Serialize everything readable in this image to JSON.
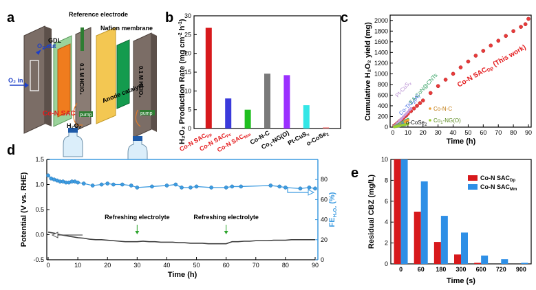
{
  "panel_labels": [
    "a",
    "b",
    "c",
    "d",
    "e"
  ],
  "schematic": {
    "o2_out": "O₂ out",
    "o2_in": "O₂ in",
    "gdl": "GDL",
    "reference_electrode": "Reference electrode",
    "nafion_membrane": "Nafion membrane",
    "electrolyte_left": "0.1 M HClO₄",
    "electrolyte_right": "0.1 M HClO₄",
    "co_n_sac": "Co-N SAC",
    "anode_catalyst": "Anode catalyst",
    "pump_left": "pump",
    "pump_right": "pump",
    "h2o2": "H₂O₂"
  },
  "chart_data": [
    {
      "id": "b",
      "type": "bar",
      "ylabel_main": "H₂O₂ Production Rate (mg cm",
      "ylabel_sup1": "-2",
      "ylabel_mid": " h",
      "ylabel_sup2": "-1",
      "ylabel_end": ")",
      "ylim": [
        0,
        30
      ],
      "yticks": [
        "0",
        "5",
        "10",
        "15",
        "20",
        "25",
        "30"
      ],
      "categories": [
        {
          "main": "Co-N SAC",
          "sub": "Dp",
          "color": "#e41a1c"
        },
        {
          "main": "Co-N SAC",
          "sub": "Pc",
          "color": "#e41a1c"
        },
        {
          "main": "Co-N SAC",
          "sub": "Mm",
          "color": "#e41a1c"
        },
        {
          "main": "Co-N-C",
          "sub": "",
          "color": "#000000"
        },
        {
          "main": "Co",
          "sub": "1",
          "rest": "-NG(O)",
          "color": "#000000"
        },
        {
          "main": "Pt-CuS",
          "sub": "x",
          "color": "#000000"
        },
        {
          "main": "o-CoSe",
          "sub": "2",
          "color": "#000000"
        }
      ],
      "values": [
        26.8,
        8.0,
        5.0,
        14.6,
        14.2,
        6.2,
        0.3
      ],
      "colors": [
        "#d7191c",
        "#3a3adb",
        "#1fbf1f",
        "#7a7a7a",
        "#9b30ff",
        "#33e6e6",
        "#f08080"
      ]
    },
    {
      "id": "c",
      "type": "scatter",
      "xlabel": "Time (h)",
      "ylabel": "Cumulative H₂O₂ yield (mg)",
      "xlim": [
        0,
        90
      ],
      "ylim": [
        0,
        2100
      ],
      "xticks": [
        "0",
        "10",
        "20",
        "30",
        "40",
        "50",
        "60",
        "70",
        "80",
        "90"
      ],
      "yticks": [
        "0",
        "200",
        "400",
        "600",
        "800",
        "1000",
        "1200",
        "1400",
        "1600",
        "1800",
        "2000"
      ],
      "series": [
        {
          "name": "Co-N SAC",
          "sub": "Dp",
          "rest": " (This work)",
          "color": "#e83a3a",
          "x": [
            1,
            2,
            3,
            4,
            5,
            6,
            7,
            8,
            9,
            10,
            12,
            14,
            16,
            18,
            20,
            25,
            30,
            35,
            40,
            45,
            50,
            55,
            60,
            65,
            70,
            75,
            80,
            85,
            88,
            90
          ],
          "y": [
            25,
            50,
            75,
            100,
            125,
            150,
            175,
            200,
            225,
            255,
            300,
            350,
            400,
            450,
            500,
            640,
            770,
            890,
            1000,
            1120,
            1230,
            1340,
            1430,
            1530,
            1620,
            1710,
            1800,
            1880,
            1930,
            2030
          ]
        },
        {
          "name": "Pt-CuS",
          "sub": "x",
          "rest": "",
          "color": "#c9a0dc",
          "x": [
            1,
            2,
            3,
            4,
            5,
            6,
            7,
            8,
            9,
            10,
            11,
            12
          ],
          "y": [
            20,
            45,
            75,
            105,
            135,
            165,
            195,
            225,
            255,
            285,
            320,
            350
          ]
        },
        {
          "name": "EA-CoN@CNTs",
          "sub": "",
          "rest": "",
          "color": "#3cb371",
          "x": [
            1,
            2,
            3,
            4,
            5,
            6,
            7,
            8,
            9,
            10
          ],
          "y": [
            10,
            25,
            40,
            55,
            70,
            85,
            100,
            115,
            130,
            145
          ]
        },
        {
          "name": "o-CoSe",
          "sub": "2",
          "rest": "",
          "color": "#5f9ea0",
          "x": [
            1,
            2,
            3,
            4,
            5,
            6,
            7,
            8
          ],
          "y": [
            5,
            10,
            15,
            20,
            25,
            30,
            35,
            40
          ]
        },
        {
          "name": "Co-N-C",
          "sub": "",
          "rest": "",
          "color": "#f0a030",
          "x": [
            1,
            2,
            3,
            4,
            5,
            6,
            7,
            8,
            9,
            10
          ],
          "y": [
            10,
            20,
            30,
            40,
            55,
            70,
            85,
            100,
            115,
            130
          ]
        },
        {
          "name": "Co-TiO",
          "sub": "2",
          "rest": "(A)",
          "color": "#4169e1",
          "x": [
            1,
            2,
            3,
            4,
            5,
            6,
            7
          ],
          "y": [
            8,
            16,
            24,
            32,
            40,
            48,
            56
          ]
        },
        {
          "name": "Co",
          "sub": "1",
          "rest": "-NG(O)",
          "color": "#9acd32",
          "x": [
            1,
            2,
            3,
            4,
            5,
            6,
            7,
            8,
            9,
            10
          ],
          "y": [
            6,
            12,
            18,
            24,
            30,
            36,
            42,
            48,
            54,
            60
          ]
        }
      ],
      "labels": {
        "this_work": "Co-N SAC",
        "this_work_sub": "Dp",
        "this_work_rest": " (This work)",
        "ptcus": "Pt-CuS",
        "ptcus_sub": "x",
        "ea": "EA-CoN@CNTs",
        "coti": "Co-TiO",
        "coti_sub": "2",
        "coti_rest": "(A)",
        "cose": "o-CoSe",
        "cose_sub": "2",
        "conc": "Co-N-C",
        "cong": "Co",
        "cong_sub": "1",
        "cong_rest": "-NG(O)"
      }
    },
    {
      "id": "d",
      "type": "line",
      "xlabel": "Time (h)",
      "ylabel_left": "Potential (V vs. RHE)",
      "ylabel_right_main": "FE",
      "ylabel_right_sub": "H₂O₂",
      "ylabel_right_end": " (%)",
      "xlim": [
        0,
        90
      ],
      "ylim_left": [
        -0.5,
        1.5
      ],
      "ylim_right": [
        0,
        100
      ],
      "xticks": [
        "0",
        "10",
        "20",
        "30",
        "40",
        "50",
        "60",
        "70",
        "80",
        "90"
      ],
      "yticks_left": [
        "-0.5",
        "0.0",
        "0.5",
        "1.0",
        "1.5"
      ],
      "yticks_right": [
        "0",
        "20",
        "40",
        "60",
        "80"
      ],
      "annotations": [
        "Refreshing electrolyte",
        "Refreshing electrolyte"
      ],
      "annotation_x": [
        30,
        60
      ],
      "potential": {
        "x": [
          0,
          2,
          4,
          6,
          8,
          10,
          12,
          14,
          16,
          18,
          20,
          22,
          24,
          26,
          28,
          30,
          32,
          34,
          36,
          38,
          40,
          42,
          44,
          46,
          48,
          50,
          52,
          54,
          56,
          58,
          60,
          62,
          64,
          66,
          68,
          70,
          72,
          74,
          76,
          78,
          80,
          82,
          84,
          86,
          88,
          90
        ],
        "y": [
          0.05,
          0.03,
          0.0,
          -0.02,
          -0.04,
          -0.06,
          -0.07,
          -0.09,
          -0.1,
          -0.1,
          -0.11,
          -0.12,
          -0.13,
          -0.14,
          -0.14,
          -0.14,
          -0.13,
          -0.14,
          -0.14,
          -0.15,
          -0.15,
          -0.15,
          -0.16,
          -0.16,
          -0.17,
          -0.17,
          -0.17,
          -0.18,
          -0.18,
          -0.18,
          -0.18,
          -0.14,
          -0.14,
          -0.13,
          -0.13,
          -0.12,
          -0.12,
          -0.12,
          -0.11,
          -0.11,
          -0.11,
          -0.1,
          -0.1,
          -0.1,
          -0.1,
          -0.1
        ]
      },
      "fe": {
        "x": [
          0,
          1,
          2,
          3,
          4,
          5,
          6,
          7,
          8,
          9,
          10,
          12,
          15,
          18,
          20,
          22,
          25,
          28,
          30,
          35,
          40,
          43,
          45,
          48,
          50,
          55,
          60,
          62,
          65,
          75,
          78,
          80,
          85,
          88,
          90
        ],
        "y": [
          84,
          81,
          80,
          79,
          78,
          78,
          77,
          77,
          78,
          78,
          77,
          76,
          74,
          75,
          76,
          75,
          75,
          74,
          72,
          73,
          74,
          75,
          72,
          72,
          73,
          72,
          72,
          73,
          73,
          74,
          73,
          72,
          71,
          72,
          71
        ]
      },
      "fe_color": "#3d9be0",
      "potential_color": "#404040"
    },
    {
      "id": "e",
      "type": "bar",
      "xlabel": "Time (s)",
      "ylabel": "Residual CBZ (mg/L)",
      "ylim": [
        0,
        10
      ],
      "yticks": [
        "0",
        "2",
        "4",
        "6",
        "8",
        "10"
      ],
      "categories": [
        "0",
        "60",
        "180",
        "300",
        "600",
        "720",
        "900"
      ],
      "series": [
        {
          "name": "Co-N SAC",
          "sub": "Dp",
          "color": "#d7191c",
          "values": [
            10,
            5.0,
            2.1,
            0.9,
            0.1,
            0.0,
            0.0
          ]
        },
        {
          "name": "Co-N SAC",
          "sub": "Mm",
          "color": "#2e8fe6",
          "values": [
            10,
            7.9,
            4.6,
            3.0,
            0.8,
            0.45,
            0.1
          ]
        }
      ]
    }
  ]
}
